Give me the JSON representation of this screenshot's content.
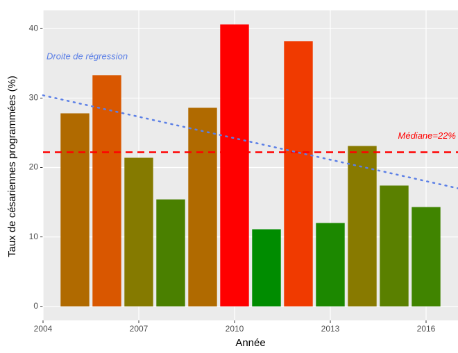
{
  "chart_data": {
    "type": "bar",
    "x": [
      2005,
      2006,
      2007,
      2008,
      2009,
      2010,
      2011,
      2012,
      2013,
      2014,
      2015,
      2016
    ],
    "values": [
      27.8,
      33.3,
      21.4,
      15.4,
      28.6,
      40.6,
      11.1,
      38.2,
      12.0,
      23.1,
      17.4,
      14.3
    ],
    "colors": [
      "#b06a00",
      "#d95700",
      "#857a00",
      "#4a8000",
      "#b06a00",
      "#ff0000",
      "#008c00",
      "#f03a00",
      "#1c8800",
      "#887a00",
      "#5a8000",
      "#408400"
    ],
    "xlim": [
      2004,
      2017
    ],
    "xticks": [
      2004,
      2007,
      2010,
      2013,
      2016
    ],
    "ylim": [
      -2.03,
      42.63
    ],
    "yticks": [
      0,
      10,
      20,
      30,
      40
    ],
    "xlabel": "Année",
    "ylabel": "Taux de césariennes programmées (%)",
    "grid": true,
    "median": {
      "value": 22.2,
      "color": "#ff0000",
      "label": "Médiane=22%"
    },
    "regression": {
      "x": [
        2004,
        2017
      ],
      "y": [
        30.4,
        17.0
      ],
      "color": "#5b7fe6",
      "label": "Droite de régression"
    }
  }
}
